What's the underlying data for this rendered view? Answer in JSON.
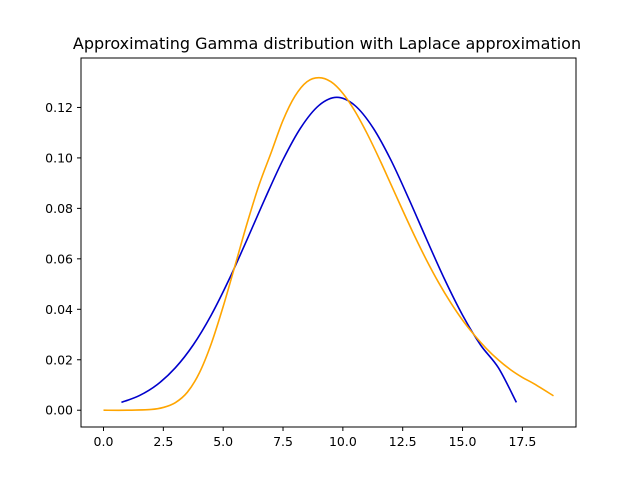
{
  "chart_data": {
    "type": "line",
    "title": "Approximating Gamma distribution with Laplace approximation",
    "xlabel": "",
    "ylabel": "",
    "xlim": [
      -0.94,
      19.74
    ],
    "ylim": [
      -0.00665,
      0.1396
    ],
    "xticks": [
      0.0,
      2.5,
      5.0,
      7.5,
      10.0,
      12.5,
      15.0,
      17.5
    ],
    "xtick_labels": [
      "0.0",
      "2.5",
      "5.0",
      "7.5",
      "10.0",
      "12.5",
      "15.0",
      "17.5"
    ],
    "yticks": [
      0.0,
      0.02,
      0.04,
      0.06,
      0.08,
      0.1,
      0.12
    ],
    "ytick_labels": [
      "0.00",
      "0.02",
      "0.04",
      "0.06",
      "0.08",
      "0.10",
      "0.12"
    ],
    "grid": false,
    "legend": "none",
    "series": [
      {
        "color": "#0000cc",
        "x": [
          0.75,
          1.5,
          2.25,
          3.0,
          3.75,
          4.5,
          5.25,
          6.0,
          6.75,
          7.5,
          8.25,
          9.0,
          9.75,
          10.5,
          11.25,
          12.0,
          12.75,
          13.5,
          14.25,
          15.0,
          15.75,
          16.5,
          17.25
        ],
        "y": [
          0.0031,
          0.0058,
          0.0102,
          0.0168,
          0.0259,
          0.0377,
          0.0519,
          0.0677,
          0.0839,
          0.0993,
          0.1121,
          0.1208,
          0.124,
          0.1208,
          0.1121,
          0.0993,
          0.0839,
          0.0677,
          0.0519,
          0.0377,
          0.0259,
          0.0168,
          0.0031
        ]
      },
      {
        "color": "#ffa500",
        "x": [
          0.0,
          1.0,
          2.0,
          2.5,
          3.0,
          3.5,
          4.0,
          4.5,
          5.0,
          5.5,
          6.0,
          6.5,
          7.0,
          7.5,
          8.0,
          8.5,
          9.0,
          9.5,
          10.0,
          10.5,
          11.0,
          11.5,
          12.0,
          12.5,
          13.0,
          13.5,
          14.0,
          14.5,
          15.0,
          15.5,
          16.0,
          16.5,
          17.0,
          17.5,
          18.0,
          18.8
        ],
        "y": [
          0.0,
          0.0,
          0.0003,
          0.0011,
          0.003,
          0.0071,
          0.0147,
          0.0263,
          0.0411,
          0.0575,
          0.0741,
          0.0893,
          0.102,
          0.1149,
          0.1245,
          0.1302,
          0.1318,
          0.1302,
          0.1256,
          0.1186,
          0.1099,
          0.1001,
          0.0897,
          0.0792,
          0.069,
          0.0594,
          0.0506,
          0.0427,
          0.0357,
          0.0297,
          0.0244,
          0.0199,
          0.0161,
          0.013,
          0.0104,
          0.0057
        ]
      }
    ]
  }
}
